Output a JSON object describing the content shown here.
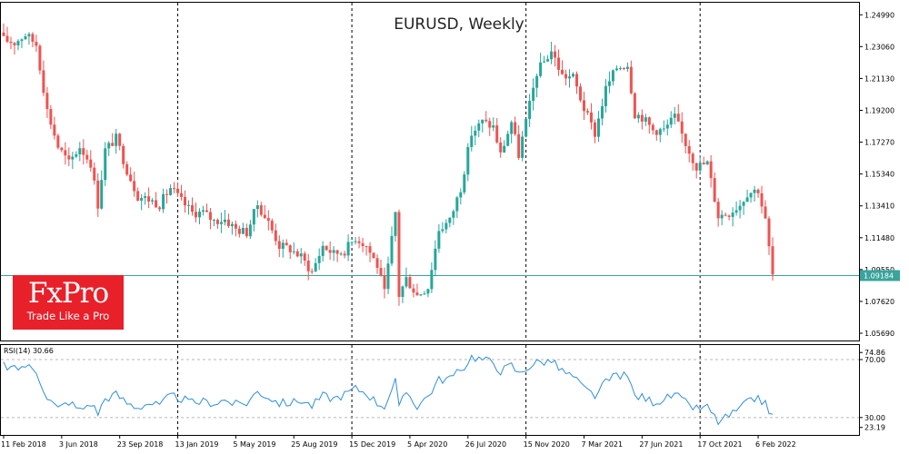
{
  "logo": {
    "name": "FxPro",
    "tagline": "Trade Like a Pro"
  },
  "colors": {
    "bull": "#26a69a",
    "bear": "#ef5350",
    "rsi": "#2f8fd9",
    "hline": "#3aa39e",
    "grid": "#000000",
    "price_box": "#39a39c"
  },
  "chart_data": [
    {
      "type": "candlestick",
      "title": "EURUSD, Weekly",
      "ylim": [
        1.0525,
        1.2572
      ],
      "y_ticks": [
        "1.24990",
        "1.23060",
        "1.21130",
        "1.19200",
        "1.17270",
        "1.15340",
        "1.13410",
        "1.11480",
        "1.09550",
        "1.07620",
        "1.05690"
      ],
      "x_ticks": [
        "11 Feb 2018",
        "3 Jun 2018",
        "23 Sep 2018",
        "13 Jan 2019",
        "5 May 2019",
        "25 Aug 2019",
        "15 Dec 2019",
        "5 Apr 2020",
        "26 Jul 2020",
        "15 Nov 2020",
        "7 Mar 2021",
        "27 Jun 2021",
        "17 Oct 2021",
        "6 Feb 2022"
      ],
      "current_price": "1.09184",
      "vertical_separators": [
        "13 Jan 2019",
        "15 Dec 2019",
        "15 Nov 2020",
        "17 Oct 2021"
      ],
      "keypoints": [
        [
          "11 Feb 2018",
          1.2348
        ],
        [
          "4 Mar 2018",
          1.233
        ],
        [
          "25 Mar 2018",
          1.238
        ],
        [
          "15 Apr 2018",
          1.232
        ],
        [
          "6 May 2018",
          1.192
        ],
        [
          "27 May 2018",
          1.17
        ],
        [
          "17 Jun 2018",
          1.16
        ],
        [
          "8 Jul 2018",
          1.17
        ],
        [
          "29 Jul 2018",
          1.16
        ],
        [
          "12 Aug 2018",
          1.135
        ],
        [
          "26 Aug 2018",
          1.168
        ],
        [
          "16 Sep 2018",
          1.175
        ],
        [
          "7 Oct 2018",
          1.156
        ],
        [
          "28 Oct 2018",
          1.14
        ],
        [
          "18 Nov 2018",
          1.138
        ],
        [
          "9 Dec 2018",
          1.135
        ],
        [
          "30 Dec 2018",
          1.145
        ],
        [
          "20 Jan 2019",
          1.137
        ],
        [
          "10 Feb 2019",
          1.13
        ],
        [
          "3 Mar 2019",
          1.13
        ],
        [
          "24 Mar 2019",
          1.125
        ],
        [
          "14 Apr 2019",
          1.126
        ],
        [
          "5 May 2019",
          1.12
        ],
        [
          "26 May 2019",
          1.118
        ],
        [
          "16 Jun 2019",
          1.135
        ],
        [
          "7 Jul 2019",
          1.124
        ],
        [
          "28 Jul 2019",
          1.11
        ],
        [
          "18 Aug 2019",
          1.108
        ],
        [
          "8 Sep 2019",
          1.103
        ],
        [
          "29 Sep 2019",
          1.094
        ],
        [
          "20 Oct 2019",
          1.11
        ],
        [
          "10 Nov 2019",
          1.105
        ],
        [
          "1 Dec 2019",
          1.107
        ],
        [
          "22 Dec 2019",
          1.115
        ],
        [
          "12 Jan 2020",
          1.11
        ],
        [
          "2 Feb 2020",
          1.098
        ],
        [
          "16 Feb 2020",
          1.081
        ],
        [
          "8 Mar 2020",
          1.13
        ],
        [
          "15 Mar 2020",
          1.08
        ],
        [
          "29 Mar 2020",
          1.09
        ],
        [
          "19 Apr 2020",
          1.08
        ],
        [
          "10 May 2020",
          1.085
        ],
        [
          "31 May 2020",
          1.12
        ],
        [
          "21 Jun 2020",
          1.125
        ],
        [
          "12 Jul 2020",
          1.145
        ],
        [
          "2 Aug 2020",
          1.178
        ],
        [
          "23 Aug 2020",
          1.185
        ],
        [
          "13 Sep 2020",
          1.182
        ],
        [
          "27 Sep 2020",
          1.165
        ],
        [
          "18 Oct 2020",
          1.185
        ],
        [
          "1 Nov 2020",
          1.165
        ],
        [
          "15 Nov 2020",
          1.185
        ],
        [
          "6 Dec 2020",
          1.215
        ],
        [
          "3 Jan 2021",
          1.228
        ],
        [
          "24 Jan 2021",
          1.213
        ],
        [
          "14 Feb 2021",
          1.212
        ],
        [
          "7 Mar 2021",
          1.193
        ],
        [
          "28 Mar 2021",
          1.178
        ],
        [
          "18 Apr 2021",
          1.205
        ],
        [
          "9 May 2021",
          1.218
        ],
        [
          "30 May 2021",
          1.22
        ],
        [
          "13 Jun 2021",
          1.19
        ],
        [
          "27 Jun 2021",
          1.188
        ],
        [
          "18 Jul 2021",
          1.18
        ],
        [
          "8 Aug 2021",
          1.18
        ],
        [
          "29 Aug 2021",
          1.188
        ],
        [
          "19 Sep 2021",
          1.172
        ],
        [
          "10 Oct 2021",
          1.158
        ],
        [
          "31 Oct 2021",
          1.16
        ],
        [
          "21 Nov 2021",
          1.128
        ],
        [
          "12 Dec 2021",
          1.13
        ],
        [
          "2 Jan 2022",
          1.135
        ],
        [
          "16 Jan 2022",
          1.142
        ],
        [
          "6 Feb 2022",
          1.144
        ],
        [
          "20 Feb 2022",
          1.125
        ],
        [
          "6 Mar 2022",
          1.092
        ]
      ]
    },
    {
      "type": "line",
      "title": "RSI(14) 30.66",
      "ylim": [
        18,
        80
      ],
      "y_ticks": [
        "74.86",
        "70.00",
        "30.00",
        "23.19"
      ],
      "x_ticks": [
        "11 Feb 2018",
        "3 Jun 2018",
        "23 Sep 2018",
        "13 Jan 2019",
        "5 May 2019",
        "25 Aug 2019",
        "15 Dec 2019",
        "5 Apr 2020",
        "26 Jul 2020",
        "15 Nov 2020",
        "7 Mar 2021",
        "27 Jun 2021",
        "17 Oct 2021",
        "6 Feb 2022"
      ],
      "keypoints": [
        [
          "11 Feb 2018",
          66
        ],
        [
          "4 Mar 2018",
          63
        ],
        [
          "25 Mar 2018",
          66
        ],
        [
          "15 Apr 2018",
          62
        ],
        [
          "6 May 2018",
          44
        ],
        [
          "27 May 2018",
          36
        ],
        [
          "17 Jun 2018",
          41
        ],
        [
          "8 Jul 2018",
          35
        ],
        [
          "29 Jul 2018",
          40
        ],
        [
          "12 Aug 2018",
          33
        ],
        [
          "26 Aug 2018",
          43
        ],
        [
          "16 Sep 2018",
          46
        ],
        [
          "7 Oct 2018",
          40
        ],
        [
          "28 Oct 2018",
          37
        ],
        [
          "18 Nov 2018",
          40
        ],
        [
          "9 Dec 2018",
          38
        ],
        [
          "30 Dec 2018",
          45
        ],
        [
          "20 Jan 2019",
          43
        ],
        [
          "10 Feb 2019",
          40
        ],
        [
          "3 Mar 2019",
          41
        ],
        [
          "24 Mar 2019",
          40
        ],
        [
          "14 Apr 2019",
          42
        ],
        [
          "5 May 2019",
          39
        ],
        [
          "26 May 2019",
          40
        ],
        [
          "16 Jun 2019",
          48
        ],
        [
          "7 Jul 2019",
          44
        ],
        [
          "28 Jul 2019",
          40
        ],
        [
          "18 Aug 2019",
          40
        ],
        [
          "8 Sep 2019",
          42
        ],
        [
          "29 Sep 2019",
          38
        ],
        [
          "20 Oct 2019",
          45
        ],
        [
          "10 Nov 2019",
          43
        ],
        [
          "1 Dec 2019",
          46
        ],
        [
          "22 Dec 2019",
          50
        ],
        [
          "12 Jan 2020",
          47
        ],
        [
          "2 Feb 2020",
          40
        ],
        [
          "16 Feb 2020",
          38
        ],
        [
          "8 Mar 2020",
          55
        ],
        [
          "15 Mar 2020",
          36
        ],
        [
          "29 Mar 2020",
          48
        ],
        [
          "19 Apr 2020",
          38
        ],
        [
          "10 May 2020",
          45
        ],
        [
          "31 May 2020",
          56
        ],
        [
          "21 Jun 2020",
          57
        ],
        [
          "12 Jul 2020",
          62
        ],
        [
          "2 Aug 2020",
          72
        ],
        [
          "23 Aug 2020",
          70
        ],
        [
          "13 Sep 2020",
          68
        ],
        [
          "27 Sep 2020",
          62
        ],
        [
          "18 Oct 2020",
          66
        ],
        [
          "1 Nov 2020",
          60
        ],
        [
          "15 Nov 2020",
          64
        ],
        [
          "6 Dec 2020",
          68
        ],
        [
          "3 Jan 2021",
          69
        ],
        [
          "24 Jan 2021",
          62
        ],
        [
          "14 Feb 2021",
          58
        ],
        [
          "7 Mar 2021",
          50
        ],
        [
          "28 Mar 2021",
          45
        ],
        [
          "18 Apr 2021",
          54
        ],
        [
          "9 May 2021",
          60
        ],
        [
          "30 May 2021",
          58
        ],
        [
          "13 Jun 2021",
          45
        ],
        [
          "27 Jun 2021",
          44
        ],
        [
          "18 Jul 2021",
          41
        ],
        [
          "8 Aug 2021",
          42
        ],
        [
          "29 Aug 2021",
          46
        ],
        [
          "19 Sep 2021",
          40
        ],
        [
          "10 Oct 2021",
          36
        ],
        [
          "31 Oct 2021",
          37
        ],
        [
          "21 Nov 2021",
          27
        ],
        [
          "12 Dec 2021",
          31
        ],
        [
          "2 Jan 2022",
          36
        ],
        [
          "16 Jan 2022",
          40
        ],
        [
          "6 Feb 2022",
          44
        ],
        [
          "20 Feb 2022",
          39
        ],
        [
          "6 Mar 2022",
          31
        ]
      ]
    }
  ]
}
